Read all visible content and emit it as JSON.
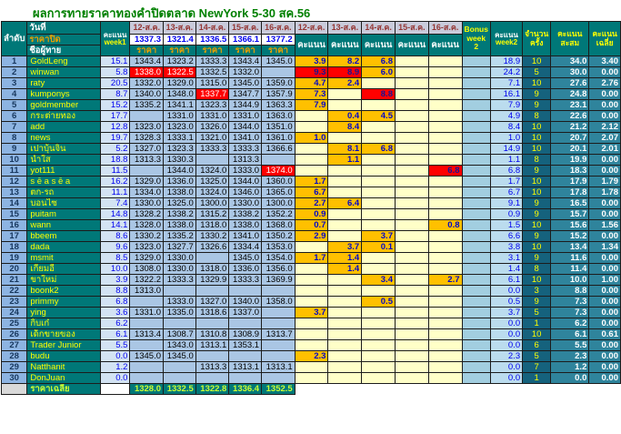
{
  "title": "ผลการทายราคาทองคำปิดตลาด NewYork 5-30 สค.56",
  "colors": {
    "teal": "#007878",
    "titleGreen": "#008000",
    "gold": "#E8A000",
    "maroon": "#943634",
    "dateBg": "#C9CBDB",
    "rankBg": "#8DB4E2",
    "wk1Bg": "#D3E3F3",
    "priceBg": "#AAC6E4",
    "scoreBg": "#FFFFC8",
    "orange": "#FFC000",
    "red": "#FF0000",
    "blue": "#0000EE",
    "bonusBg": "#A2CEE0",
    "wk2Bg": "#BBDCEE",
    "countBg": "#15627D",
    "totBg": "#2F849C",
    "limeY": "#CCFF33"
  },
  "header": {
    "rank_label": "ลำดับ",
    "date_label": "วันที่",
    "close_label": "ราคาปิด",
    "name_label": "ชื่อผู้ทาย",
    "score_label": "คะแนน",
    "week1_label": "week1",
    "week2_label": "week2",
    "price_label": "ราคา",
    "bonus_label": "Bonus week 2",
    "count_label": "จำนวนครั้ง",
    "total_label": "คะแนนสะสม",
    "avg_label": "คะแนนเฉลี่ย",
    "dates": [
      "12-ส.ค.",
      "13-ส.ค.",
      "14-ส.ค.",
      "15-ส.ค.",
      "16-ส.ค."
    ],
    "closing_prices": [
      "1337.3",
      "1321.4",
      "1336.5",
      "1366.1",
      "1377.2"
    ]
  },
  "rows": [
    {
      "rank": "1",
      "name": "GoldLeng",
      "week1": "15.1",
      "prices": [
        "1343.4",
        "1323.2",
        "1333.3",
        "1343.4",
        "1345.0"
      ],
      "price_red": [],
      "scores": [
        "3.9",
        "8.2",
        "6.8",
        "",
        ""
      ],
      "score_red": [],
      "week2": "18.9",
      "count": "10",
      "total": "34.0",
      "avg": "3.40"
    },
    {
      "rank": "2",
      "name": "winwan",
      "week1": "5.8",
      "prices": [
        "1338.0",
        "1322.5",
        "1332.5",
        "1332.0",
        ""
      ],
      "price_red": [
        0,
        1
      ],
      "scores": [
        "9.3",
        "8.9",
        "6.0",
        "",
        ""
      ],
      "score_red": [
        0,
        1
      ],
      "week2": "24.2",
      "count": "5",
      "total": "30.0",
      "avg": "0.00"
    },
    {
      "rank": "3",
      "name": "raty",
      "week1": "20.5",
      "prices": [
        "1332.0",
        "1329.0",
        "1315.0",
        "1345.0",
        "1359.0"
      ],
      "price_red": [],
      "scores": [
        "4.7",
        "2.4",
        "",
        "",
        ""
      ],
      "score_red": [],
      "week2": "7.1",
      "count": "10",
      "total": "27.6",
      "avg": "2.76"
    },
    {
      "rank": "4",
      "name": "kumponys",
      "week1": "8.7",
      "prices": [
        "1340.0",
        "1348.0",
        "1337.7",
        "1347.7",
        "1357.9"
      ],
      "price_red": [
        2
      ],
      "scores": [
        "7.3",
        "",
        "8.8",
        "",
        ""
      ],
      "score_red": [
        2
      ],
      "week2": "16.1",
      "count": "9",
      "total": "24.8",
      "avg": "0.00"
    },
    {
      "rank": "5",
      "name": "goldmember",
      "week1": "15.2",
      "prices": [
        "1335.2",
        "1341.1",
        "1323.3",
        "1344.9",
        "1363.3"
      ],
      "price_red": [],
      "scores": [
        "7.9",
        "",
        "",
        "",
        ""
      ],
      "score_red": [],
      "week2": "7.9",
      "count": "9",
      "total": "23.1",
      "avg": "0.00"
    },
    {
      "rank": "6",
      "name": "กระต่ายทอง",
      "week1": "17.7",
      "prices": [
        "",
        "1331.0",
        "1331.0",
        "1331.0",
        "1363.0"
      ],
      "price_red": [],
      "scores": [
        "",
        "0.4",
        "4.5",
        "",
        ""
      ],
      "score_red": [],
      "week2": "4.9",
      "count": "8",
      "total": "22.6",
      "avg": "0.00"
    },
    {
      "rank": "7",
      "name": "add",
      "week1": "12.8",
      "prices": [
        "1323.0",
        "1323.0",
        "1326.0",
        "1344.0",
        "1351.0"
      ],
      "price_red": [],
      "scores": [
        "",
        "8.4",
        "",
        "",
        ""
      ],
      "score_red": [],
      "week2": "8.4",
      "count": "10",
      "total": "21.2",
      "avg": "2.12"
    },
    {
      "rank": "8",
      "name": "news",
      "week1": "19.7",
      "prices": [
        "1328.3",
        "1333.1",
        "1321.0",
        "1341.0",
        "1361.0"
      ],
      "price_red": [],
      "scores": [
        "1.0",
        "",
        "",
        "",
        ""
      ],
      "score_red": [],
      "week2": "1.0",
      "count": "10",
      "total": "20.7",
      "avg": "2.07"
    },
    {
      "rank": "9",
      "name": "เปาบุ้นจิ้น",
      "week1": "5.2",
      "prices": [
        "1327.0",
        "1323.3",
        "1333.3",
        "1333.3",
        "1366.6"
      ],
      "price_red": [],
      "scores": [
        "",
        "8.1",
        "6.8",
        "",
        ""
      ],
      "score_red": [],
      "week2": "14.9",
      "count": "10",
      "total": "20.1",
      "avg": "2.01"
    },
    {
      "rank": "10",
      "name": "น้ำใส",
      "week1": "18.8",
      "prices": [
        "1313.3",
        "1330.3",
        "",
        "1313.3",
        ""
      ],
      "price_red": [],
      "scores": [
        "",
        "1.1",
        "",
        "",
        ""
      ],
      "score_red": [],
      "week2": "1.1",
      "count": "8",
      "total": "19.9",
      "avg": "0.00"
    },
    {
      "rank": "11",
      "name": "yot111",
      "week1": "11.5",
      "prices": [
        "",
        "1344.0",
        "1324.0",
        "1333.0",
        "1374.0"
      ],
      "price_red": [
        4
      ],
      "scores": [
        "",
        "",
        "",
        "",
        "6.8"
      ],
      "score_red": [
        4
      ],
      "week2": "6.8",
      "count": "9",
      "total": "18.3",
      "avg": "0.00"
    },
    {
      "rank": "12",
      "name": "s ē a s ē a",
      "week1": "16.2",
      "prices": [
        "1329.0",
        "1336.0",
        "1325.0",
        "1344.0",
        "1360.0"
      ],
      "price_red": [],
      "scores": [
        "1.7",
        "",
        "",
        "",
        ""
      ],
      "score_red": [],
      "week2": "1.7",
      "count": "10",
      "total": "17.9",
      "avg": "1.79"
    },
    {
      "rank": "13",
      "name": "ตก-รถ",
      "week1": "11.1",
      "prices": [
        "1334.0",
        "1338.0",
        "1324.0",
        "1346.0",
        "1365.0"
      ],
      "price_red": [],
      "scores": [
        "6.7",
        "",
        "",
        "",
        ""
      ],
      "score_red": [],
      "week2": "6.7",
      "count": "10",
      "total": "17.8",
      "avg": "1.78"
    },
    {
      "rank": "14",
      "name": "บอนไซ",
      "week1": "7.4",
      "prices": [
        "1330.0",
        "1325.0",
        "1300.0",
        "1330.0",
        "1300.0"
      ],
      "price_red": [],
      "scores": [
        "2.7",
        "6.4",
        "",
        "",
        ""
      ],
      "score_red": [],
      "week2": "9.1",
      "count": "9",
      "total": "16.5",
      "avg": "0.00"
    },
    {
      "rank": "15",
      "name": "puitam",
      "week1": "14.8",
      "prices": [
        "1328.2",
        "1338.2",
        "1315.2",
        "1338.2",
        "1352.2"
      ],
      "price_red": [],
      "scores": [
        "0.9",
        "",
        "",
        "",
        ""
      ],
      "score_red": [],
      "week2": "0.9",
      "count": "9",
      "total": "15.7",
      "avg": "0.00"
    },
    {
      "rank": "16",
      "name": "wann",
      "week1": "14.1",
      "prices": [
        "1328.0",
        "1338.0",
        "1318.0",
        "1338.0",
        "1368.0"
      ],
      "price_red": [],
      "scores": [
        "0.7",
        "",
        "",
        "",
        "0.8"
      ],
      "score_red": [],
      "week2": "1.5",
      "count": "10",
      "total": "15.6",
      "avg": "1.56"
    },
    {
      "rank": "17",
      "name": "bbeem",
      "week1": "8.6",
      "prices": [
        "1330.2",
        "1335.2",
        "1330.2",
        "1341.0",
        "1350.2"
      ],
      "price_red": [],
      "scores": [
        "2.9",
        "",
        "3.7",
        "",
        ""
      ],
      "score_red": [],
      "week2": "6.6",
      "count": "9",
      "total": "15.2",
      "avg": "0.00"
    },
    {
      "rank": "18",
      "name": "dada",
      "week1": "9.6",
      "prices": [
        "1323.0",
        "1327.7",
        "1326.6",
        "1334.4",
        "1353.0"
      ],
      "price_red": [],
      "scores": [
        "",
        "3.7",
        "0.1",
        "",
        ""
      ],
      "score_red": [],
      "week2": "3.8",
      "count": "10",
      "total": "13.4",
      "avg": "1.34"
    },
    {
      "rank": "19",
      "name": "msmit",
      "week1": "8.5",
      "prices": [
        "1329.0",
        "1330.0",
        "",
        "1345.0",
        "1354.0"
      ],
      "price_red": [],
      "scores": [
        "1.7",
        "1.4",
        "",
        "",
        ""
      ],
      "score_red": [],
      "week2": "3.1",
      "count": "9",
      "total": "11.6",
      "avg": "0.00"
    },
    {
      "rank": "20",
      "name": "เกี้ยมอี๋",
      "week1": "10.0",
      "prices": [
        "1308.0",
        "1330.0",
        "1318.0",
        "1336.0",
        "1356.0"
      ],
      "price_red": [],
      "scores": [
        "",
        "1.4",
        "",
        "",
        ""
      ],
      "score_red": [],
      "week2": "1.4",
      "count": "8",
      "total": "11.4",
      "avg": "0.00"
    },
    {
      "rank": "21",
      "name": "ขาใหม่",
      "week1": "3.9",
      "prices": [
        "1322.2",
        "1333.3",
        "1329.9",
        "1333.3",
        "1369.9"
      ],
      "price_red": [],
      "scores": [
        "",
        "",
        "3.4",
        "",
        "2.7"
      ],
      "score_red": [],
      "week2": "6.1",
      "count": "10",
      "total": "10.0",
      "avg": "1.00"
    },
    {
      "rank": "22",
      "name": "boonk2",
      "week1": "8.8",
      "prices": [
        "1313.0",
        "",
        "",
        "",
        ""
      ],
      "price_red": [],
      "scores": [
        "",
        "",
        "",
        "",
        ""
      ],
      "score_red": [],
      "week2": "0.0",
      "count": "3",
      "total": "8.8",
      "avg": "0.00"
    },
    {
      "rank": "23",
      "name": "primmy",
      "week1": "6.8",
      "prices": [
        "",
        "1333.0",
        "1327.0",
        "1340.0",
        "1358.0"
      ],
      "price_red": [],
      "scores": [
        "",
        "",
        "0.5",
        "",
        ""
      ],
      "score_red": [],
      "week2": "0.5",
      "count": "9",
      "total": "7.3",
      "avg": "0.00"
    },
    {
      "rank": "24",
      "name": "ying",
      "week1": "3.6",
      "prices": [
        "1331.0",
        "1335.0",
        "1318.6",
        "1337.0",
        ""
      ],
      "price_red": [],
      "scores": [
        "3.7",
        "",
        "",
        "",
        ""
      ],
      "score_red": [],
      "week2": "3.7",
      "count": "5",
      "total": "7.3",
      "avg": "0.00"
    },
    {
      "rank": "25",
      "name": "กิ๊บเก๋",
      "week1": "6.2",
      "prices": [
        "",
        "",
        "",
        "",
        ""
      ],
      "price_red": [],
      "scores": [
        "",
        "",
        "",
        "",
        ""
      ],
      "score_red": [],
      "week2": "0.0",
      "count": "1",
      "total": "6.2",
      "avg": "0.00"
    },
    {
      "rank": "26",
      "name": "เด็กขายของ",
      "week1": "6.1",
      "prices": [
        "1313.4",
        "1308.7",
        "1310.8",
        "1308.9",
        "1313.7"
      ],
      "price_red": [],
      "scores": [
        "",
        "",
        "",
        "",
        ""
      ],
      "score_red": [],
      "week2": "0.0",
      "count": "10",
      "total": "6.1",
      "avg": "0.61"
    },
    {
      "rank": "27",
      "name": "Trader Junior",
      "week1": "5.5",
      "prices": [
        "",
        "1343.0",
        "1313.1",
        "1353.1",
        ""
      ],
      "price_red": [],
      "scores": [
        "",
        "",
        "",
        "",
        ""
      ],
      "score_red": [],
      "week2": "0.0",
      "count": "6",
      "total": "5.5",
      "avg": "0.00"
    },
    {
      "rank": "28",
      "name": "budu",
      "week1": "0.0",
      "prices": [
        "1345.0",
        "1345.0",
        "",
        "",
        ""
      ],
      "price_red": [],
      "scores": [
        "2.3",
        "",
        "",
        "",
        ""
      ],
      "score_red": [],
      "week2": "2.3",
      "count": "5",
      "total": "2.3",
      "avg": "0.00"
    },
    {
      "rank": "29",
      "name": "Natthanit",
      "week1": "1.2",
      "prices": [
        "",
        "",
        "1313.3",
        "1313.1",
        "1313.1"
      ],
      "price_red": [],
      "scores": [
        "",
        "",
        "",
        "",
        ""
      ],
      "score_red": [],
      "week2": "0.0",
      "count": "7",
      "total": "1.2",
      "avg": "0.00"
    },
    {
      "rank": "30",
      "name": "DonJuan",
      "week1": "0.0",
      "prices": [
        "",
        "",
        "",
        "",
        ""
      ],
      "price_red": [],
      "scores": [
        "",
        "",
        "",
        "",
        ""
      ],
      "score_red": [],
      "week2": "0.0",
      "count": "1",
      "total": "0.0",
      "avg": "0.00"
    }
  ],
  "footer": {
    "label": "ราคาเฉลี่ย",
    "avg_prices": [
      "1328.0",
      "1332.5",
      "1322.8",
      "1336.4",
      "1352.5"
    ]
  }
}
